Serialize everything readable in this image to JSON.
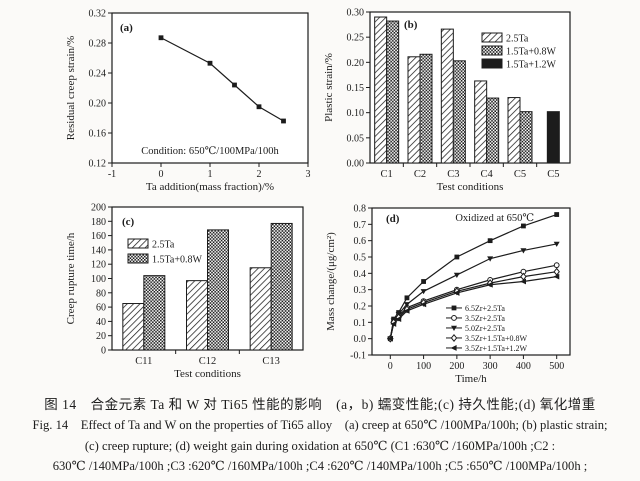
{
  "colors": {
    "ink": "#1c1c1c",
    "background": "#fbfaf8",
    "plot_bg": "#ffffff"
  },
  "figure": {
    "caption_zh": "图 14　合金元素 Ta 和 W 对 Ti65 性能的影响　(a，b) 蠕变性能;(c) 持久性能;(d) 氧化增重",
    "caption_en_line1": "Fig. 14　Effect of Ta and W on the properties of Ti65 alloy　(a) creep at 650℃ /100MPa/100h; (b) plastic strain;",
    "caption_en_line2": "(c) creep rupture; (d) weight gain during oxidation at 650℃ (C1 :630℃ /160MPa/100h ;C2 :",
    "caption_en_line3": "630℃ /140MPa/100h ;C3 :620℃ /160MPa/100h ;C4 :620℃ /140MPa/100h ;C5 :650℃ /100MPa/100h ;"
  },
  "chart_data": [
    {
      "id": "a",
      "type": "line",
      "panel_label": "(a)",
      "title": "",
      "xlabel": "Ta addition(mass fraction)/%",
      "ylabel": "Residual creep strain/%",
      "xlim": [
        -1,
        3
      ],
      "ylim": [
        0.12,
        0.32
      ],
      "xticks": [
        "-1",
        "0",
        "1",
        "2",
        "3"
      ],
      "yticks": [
        "0.12",
        "0.16",
        "0.20",
        "0.24",
        "0.28",
        "0.32"
      ],
      "annotation": "Condition: 650℃/100MPa/100h",
      "grid": false,
      "x": [
        0,
        1,
        1.5,
        2,
        2.5
      ],
      "series": [
        {
          "name": "residual-creep-strain",
          "marker": "square-filled",
          "values": [
            0.287,
            0.253,
            0.224,
            0.195,
            0.176
          ]
        }
      ]
    },
    {
      "id": "b",
      "type": "bar",
      "panel_label": "(b)",
      "title": "",
      "xlabel": "Test conditions",
      "ylabel": "Plastic strain/%",
      "ylim": [
        0,
        0.3
      ],
      "yticks": [
        "0.00",
        "0.05",
        "0.10",
        "0.15",
        "0.20",
        "0.25",
        "0.30"
      ],
      "categories": [
        "C1",
        "C2",
        "C3",
        "C4",
        "C5",
        "C5"
      ],
      "legend_pos": "top-right",
      "grid": false,
      "series": [
        {
          "name": "2.5Ta",
          "fill": "diag",
          "values": [
            0.29,
            0.211,
            0.266,
            0.163,
            0.13,
            null
          ]
        },
        {
          "name": "1.5Ta+0.8W",
          "fill": "dots",
          "values": [
            0.282,
            0.216,
            0.203,
            0.129,
            0.102,
            null
          ]
        },
        {
          "name": "1.5Ta+1.2W",
          "fill": "solid",
          "values": [
            null,
            null,
            null,
            null,
            null,
            0.102
          ]
        }
      ]
    },
    {
      "id": "c",
      "type": "bar",
      "panel_label": "(c)",
      "title": "",
      "xlabel": "Test conditions",
      "ylabel": "Creep rupture time/h",
      "ylim": [
        0,
        200
      ],
      "yticks": [
        "0",
        "20",
        "40",
        "60",
        "80",
        "100",
        "120",
        "140",
        "160",
        "180",
        "200"
      ],
      "categories": [
        "C11",
        "C12",
        "C13"
      ],
      "legend_pos": "top-left",
      "grid": false,
      "series": [
        {
          "name": "2.5Ta",
          "fill": "diag",
          "values": [
            65,
            97,
            115
          ]
        },
        {
          "name": "1.5Ta+0.8W",
          "fill": "dots",
          "values": [
            104,
            168,
            177
          ]
        }
      ]
    },
    {
      "id": "d",
      "type": "line",
      "panel_label": "(d)",
      "title": "",
      "xlabel": "Time/h",
      "ylabel": "Mass change/(μg/cm²)",
      "xlim": [
        -55,
        540
      ],
      "ylim": [
        -0.1,
        0.8
      ],
      "xticks": [
        "0",
        "100",
        "200",
        "300",
        "400",
        "500"
      ],
      "yticks": [
        "-0.1",
        "0.0",
        "0.1",
        "0.2",
        "0.3",
        "0.4",
        "0.5",
        "0.6",
        "0.7",
        "0.8"
      ],
      "annotation": "Oxidized at 650℃",
      "legend_pos": "bottom-right",
      "grid": false,
      "x": [
        0,
        10,
        25,
        50,
        100,
        200,
        300,
        400,
        500
      ],
      "series": [
        {
          "name": "6.5Zr+2.5Ta",
          "marker": "square-filled",
          "values": [
            0,
            0.12,
            0.16,
            0.25,
            0.35,
            0.5,
            0.6,
            0.69,
            0.76
          ]
        },
        {
          "name": "3.5Zr+2.5Ta",
          "marker": "circle-open",
          "values": [
            0,
            0.1,
            0.14,
            0.19,
            0.23,
            0.3,
            0.36,
            0.41,
            0.45
          ]
        },
        {
          "name": "5.0Zr+2.5Ta",
          "marker": "triangle-down-filled",
          "values": [
            0,
            0.11,
            0.15,
            0.21,
            0.29,
            0.39,
            0.49,
            0.54,
            0.58
          ]
        },
        {
          "name": "3.5Zr+1.5Ta+0.8W",
          "marker": "diamond-open",
          "values": [
            0,
            0.1,
            0.13,
            0.18,
            0.22,
            0.29,
            0.34,
            0.38,
            0.41
          ]
        },
        {
          "name": "3.5Zr+1.5Ta+1.2W",
          "marker": "triangle-left-filled",
          "values": [
            0,
            0.09,
            0.12,
            0.17,
            0.21,
            0.28,
            0.33,
            0.35,
            0.38
          ]
        }
      ]
    }
  ]
}
